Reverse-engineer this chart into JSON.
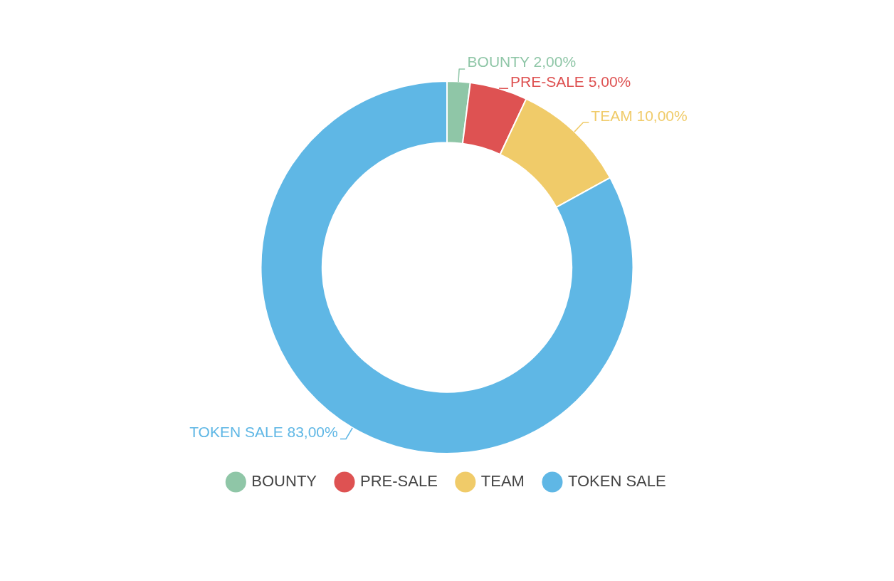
{
  "chart_data": {
    "type": "donut",
    "categories": [
      "BOUNTY",
      "PRE-SALE",
      "TEAM",
      "TOKEN SALE"
    ],
    "values": [
      2,
      5,
      10,
      83
    ],
    "colors": [
      "#8fc6a7",
      "#de5252",
      "#f0cb69",
      "#5fb7e5"
    ],
    "value_labels": [
      "2,00%",
      "5,00%",
      "10,00%",
      "83,00%"
    ],
    "legend": "bottom"
  }
}
